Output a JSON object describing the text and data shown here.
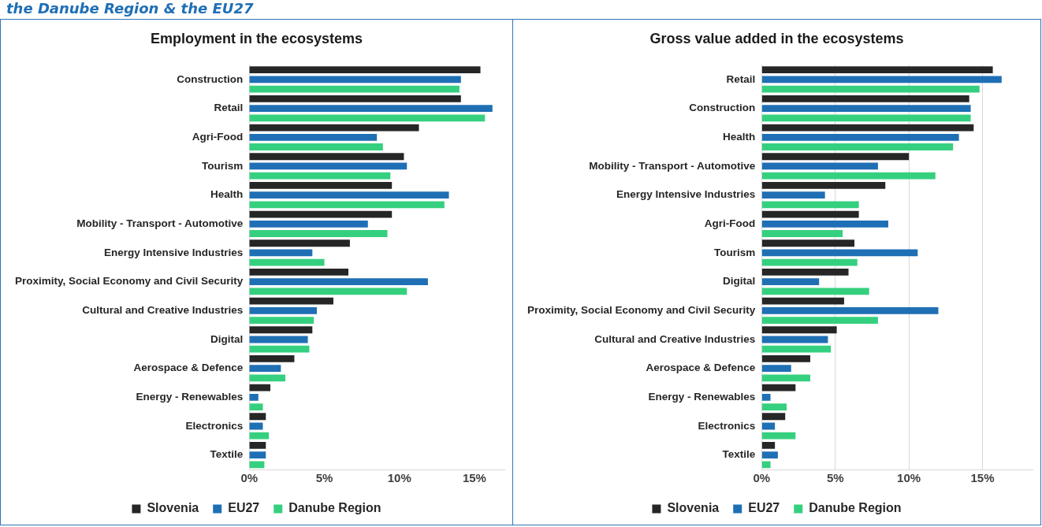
{
  "chart_data": [
    {
      "type": "bar",
      "orientation": "horizontal",
      "title": "Employment in the ecosystems",
      "annotations": [
        "the Danube Region & the EU27"
      ],
      "categories": [
        "Construction",
        "Retail",
        "Agri-Food",
        "Tourism",
        "Health",
        "Mobility - Transport - Automotive",
        "Energy Intensive Industries",
        "Proximity, Social Economy and Civil Security",
        "Cultural and Creative Industries",
        "Digital",
        "Aerospace & Defence",
        "Energy - Renewables",
        "Electronics",
        "Textile"
      ],
      "series": [
        {
          "name": "Slovenia",
          "color": "#262626",
          "values": [
            15.4,
            14.1,
            11.3,
            10.3,
            9.5,
            9.5,
            6.7,
            6.6,
            5.6,
            4.2,
            3.0,
            1.4,
            1.1,
            1.1
          ]
        },
        {
          "name": "EU27",
          "color": "#1f6fb5",
          "values": [
            14.1,
            16.2,
            8.5,
            10.5,
            13.3,
            7.9,
            4.2,
            11.9,
            4.5,
            3.9,
            2.1,
            0.6,
            0.9,
            1.1
          ]
        },
        {
          "name": "Danube Region",
          "color": "#35d07f",
          "values": [
            14.0,
            15.7,
            8.9,
            9.4,
            13.0,
            9.2,
            5.0,
            10.5,
            4.3,
            4.0,
            2.4,
            0.9,
            1.3,
            1.0
          ]
        }
      ],
      "xlim": [
        0,
        17
      ],
      "xticks": [
        {
          "value": 0,
          "label": "0%"
        },
        {
          "value": 5,
          "label": "5%"
        },
        {
          "value": 10,
          "label": "10%"
        },
        {
          "value": 15,
          "label": "15%"
        }
      ],
      "grid": false,
      "legend": "bottom"
    },
    {
      "type": "bar",
      "orientation": "horizontal",
      "title": "Gross value added in the ecosystems",
      "categories": [
        "Retail",
        "Construction",
        "Health",
        "Mobility - Transport - Automotive",
        "Energy Intensive Industries",
        "Agri-Food",
        "Tourism",
        "Digital",
        "Proximity, Social Economy and Civil Security",
        "Cultural and Creative Industries",
        "Aerospace & Defence",
        "Energy - Renewables",
        "Electronics",
        "Textile"
      ],
      "series": [
        {
          "name": "Slovenia",
          "color": "#262626",
          "values": [
            15.7,
            14.1,
            14.4,
            10.0,
            8.4,
            6.6,
            6.3,
            5.9,
            5.6,
            5.1,
            3.3,
            2.3,
            1.6,
            0.9
          ]
        },
        {
          "name": "EU27",
          "color": "#1f6fb5",
          "values": [
            16.3,
            14.2,
            13.4,
            7.9,
            4.3,
            8.6,
            10.6,
            3.9,
            12.0,
            4.5,
            2.0,
            0.6,
            0.9,
            1.1
          ]
        },
        {
          "name": "Danube Region",
          "color": "#35d07f",
          "values": [
            14.8,
            14.2,
            13.0,
            11.8,
            6.6,
            5.5,
            6.5,
            7.3,
            7.9,
            4.7,
            3.3,
            1.7,
            2.3,
            0.6
          ]
        }
      ],
      "xlim": [
        0,
        18.4
      ],
      "xticks": [
        {
          "value": 0,
          "label": "0%"
        },
        {
          "value": 5,
          "label": "5%"
        },
        {
          "value": 10,
          "label": "10%"
        },
        {
          "value": 15,
          "label": "15%"
        }
      ],
      "grid": "x",
      "legend": "bottom"
    }
  ]
}
